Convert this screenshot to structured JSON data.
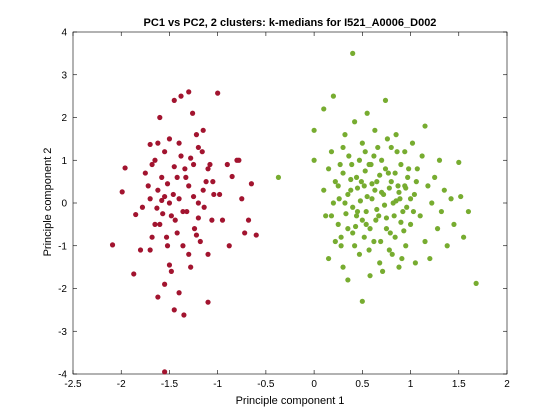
{
  "chart_data": {
    "type": "scatter",
    "title": "PC1 vs PC2, 2 clusters: k-medians for I521_A0006_D002",
    "xlabel": "Principle component 1",
    "ylabel": "Principle component 2",
    "xlim": [
      -2.5,
      2
    ],
    "ylim": [
      -4,
      4
    ],
    "xticks": [
      -2.5,
      -2,
      -1.5,
      -1,
      -0.5,
      0,
      0.5,
      1,
      1.5,
      2
    ],
    "yticks": [
      -4,
      -3,
      -2,
      -1,
      0,
      1,
      2,
      3,
      4
    ],
    "xtick_labels": [
      "-2.5",
      "-2",
      "-1.5",
      "-1",
      "-0.5",
      "0",
      "0.5",
      "1",
      "1.5",
      "2"
    ],
    "ytick_labels": [
      "-4",
      "-3",
      "-2",
      "-1",
      "0",
      "1",
      "2",
      "3",
      "4"
    ],
    "grid": false,
    "series": [
      {
        "color": "#A2142F",
        "points": [
          [
            -2.09,
            -0.98
          ],
          [
            -1.99,
            0.26
          ],
          [
            -1.96,
            0.82
          ],
          [
            -1.87,
            -1.66
          ],
          [
            -1.85,
            -0.27
          ],
          [
            -1.8,
            -1.1
          ],
          [
            -1.78,
            -0.1
          ],
          [
            -1.72,
            0.4
          ],
          [
            -1.7,
            1.37
          ],
          [
            -1.7,
            0.1
          ],
          [
            -1.68,
            0.9
          ],
          [
            -1.65,
            1.0
          ],
          [
            -1.63,
            -0.12
          ],
          [
            -1.62,
            0.3
          ],
          [
            -1.6,
            -0.5
          ],
          [
            -1.58,
            0.06
          ],
          [
            -1.55,
            -1.9
          ],
          [
            -1.53,
            -0.8
          ],
          [
            -1.5,
            1.5
          ],
          [
            -1.5,
            0.0
          ],
          [
            -1.48,
            -1.6
          ],
          [
            -1.46,
            0.2
          ],
          [
            -1.44,
            -0.4
          ],
          [
            -1.42,
            0.6
          ],
          [
            -1.4,
            -2.1
          ],
          [
            -1.38,
            1.1
          ],
          [
            -1.36,
            -1.0
          ],
          [
            -1.34,
            0.8
          ],
          [
            -1.32,
            -0.2
          ],
          [
            -1.3,
            0.4
          ],
          [
            -1.28,
            -1.5
          ],
          [
            -1.26,
            2.1
          ],
          [
            -1.24,
            -0.6
          ],
          [
            -1.22,
            1.6
          ],
          [
            -1.2,
            0.0
          ],
          [
            -1.18,
            -0.9
          ],
          [
            -1.16,
            1.2
          ],
          [
            -1.14,
            -0.1
          ],
          [
            -1.12,
            0.5
          ],
          [
            -1.1,
            -1.2
          ],
          [
            -1.08,
            0.9
          ],
          [
            -1.06,
            -0.4
          ],
          [
            -1.04,
            0.2
          ],
          [
            -1.3,
            2.6
          ],
          [
            -1.45,
            2.4
          ],
          [
            -1.6,
            2.0
          ],
          [
            -1.38,
            2.5
          ],
          [
            -1.2,
            1.3
          ],
          [
            -1.15,
            1.7
          ],
          [
            -1.4,
            1.4
          ],
          [
            -1.55,
            1.2
          ],
          [
            -1.25,
            0.9
          ],
          [
            -1.1,
            0.8
          ],
          [
            -1.05,
            0.5
          ],
          [
            -0.98,
            0.2
          ],
          [
            -1.0,
            2.57
          ],
          [
            -0.95,
            -0.4
          ],
          [
            -0.88,
            -1.0
          ],
          [
            -0.85,
            0.62
          ],
          [
            -0.8,
            1.0
          ],
          [
            -0.75,
            0.1
          ],
          [
            -0.72,
            -0.7
          ],
          [
            -0.68,
            -0.4
          ],
          [
            -0.65,
            0.45
          ],
          [
            -0.6,
            -0.75
          ],
          [
            -0.78,
            1.0
          ],
          [
            -0.9,
            0.9
          ],
          [
            -1.5,
            -1.45
          ],
          [
            -1.52,
            -1.0
          ],
          [
            -1.35,
            -2.62
          ],
          [
            -1.1,
            -2.32
          ],
          [
            -1.55,
            -3.95
          ],
          [
            -1.62,
            -2.2
          ],
          [
            -1.45,
            -2.5
          ],
          [
            -1.7,
            -1.1
          ],
          [
            -1.75,
            0.7
          ],
          [
            -1.65,
            -0.5
          ],
          [
            -1.58,
            0.6
          ],
          [
            -1.55,
            0.15
          ],
          [
            -1.48,
            -0.3
          ],
          [
            -1.42,
            -0.7
          ],
          [
            -1.36,
            -0.2
          ],
          [
            -1.3,
            -1.2
          ],
          [
            -1.25,
            0.15
          ],
          [
            -1.2,
            -0.35
          ],
          [
            -1.15,
            0.3
          ],
          [
            -1.45,
            0.85
          ],
          [
            -1.62,
            1.4
          ],
          [
            -1.28,
            1.05
          ],
          [
            -1.33,
            0.6
          ],
          [
            -1.68,
            -0.8
          ],
          [
            -1.57,
            -0.25
          ],
          [
            -1.4,
            0.1
          ],
          [
            -1.52,
            0.45
          ],
          [
            -1.22,
            -0.75
          ]
        ]
      },
      {
        "color": "#77AC30",
        "points": [
          [
            -0.37,
            0.6
          ],
          [
            0.0,
            1.7
          ],
          [
            0.0,
            1.0
          ],
          [
            0.1,
            2.2
          ],
          [
            0.1,
            0.3
          ],
          [
            0.12,
            -0.3
          ],
          [
            0.15,
            -1.3
          ],
          [
            0.18,
            1.2
          ],
          [
            0.2,
            2.5
          ],
          [
            0.22,
            0.5
          ],
          [
            0.25,
            -0.5
          ],
          [
            0.27,
            0.9
          ],
          [
            0.28,
            -1.0
          ],
          [
            0.3,
            -1.5
          ],
          [
            0.32,
            1.6
          ],
          [
            0.32,
            0.0
          ],
          [
            0.35,
            -1.8
          ],
          [
            0.36,
            1.1
          ],
          [
            0.38,
            0.3
          ],
          [
            0.4,
            -0.7
          ],
          [
            0.4,
            3.5
          ],
          [
            0.42,
            1.9
          ],
          [
            0.44,
            0.6
          ],
          [
            0.45,
            -0.2
          ],
          [
            0.47,
            -1.2
          ],
          [
            0.5,
            1.4
          ],
          [
            0.5,
            -2.3
          ],
          [
            0.52,
            0.4
          ],
          [
            0.54,
            -0.5
          ],
          [
            0.55,
            2.1
          ],
          [
            0.57,
            0.9
          ],
          [
            0.58,
            -1.7
          ],
          [
            0.6,
            0.1
          ],
          [
            0.62,
            -0.9
          ],
          [
            0.63,
            1.7
          ],
          [
            0.65,
            0.5
          ],
          [
            0.67,
            -0.3
          ],
          [
            0.68,
            -1.4
          ],
          [
            0.7,
            1.0
          ],
          [
            0.72,
            0.2
          ],
          [
            0.74,
            2.4
          ],
          [
            0.75,
            -0.6
          ],
          [
            0.77,
            0.7
          ],
          [
            0.78,
            -1.1
          ],
          [
            0.8,
            1.3
          ],
          [
            0.82,
            0.0
          ],
          [
            0.84,
            -0.8
          ],
          [
            0.85,
            1.6
          ],
          [
            0.87,
            0.4
          ],
          [
            0.88,
            -1.5
          ],
          [
            0.9,
            0.9
          ],
          [
            0.92,
            -0.2
          ],
          [
            0.94,
            1.2
          ],
          [
            0.95,
            -1.0
          ],
          [
            0.97,
            0.6
          ],
          [
            1.0,
            -0.5
          ],
          [
            1.02,
            1.4
          ],
          [
            1.04,
            0.2
          ],
          [
            1.05,
            -1.4
          ],
          [
            1.07,
            0.8
          ],
          [
            1.1,
            -0.3
          ],
          [
            1.12,
            1.1
          ],
          [
            1.15,
            1.8
          ],
          [
            1.15,
            -0.9
          ],
          [
            1.18,
            0.4
          ],
          [
            1.2,
            -1.3
          ],
          [
            1.22,
            0.0
          ],
          [
            1.25,
            0.6
          ],
          [
            1.28,
            -0.6
          ],
          [
            1.3,
            1.0
          ],
          [
            1.32,
            -0.2
          ],
          [
            1.35,
            0.3
          ],
          [
            1.38,
            -1.0
          ],
          [
            1.42,
            0.1
          ],
          [
            1.45,
            -0.5
          ],
          [
            1.5,
            0.95
          ],
          [
            1.52,
            0.15
          ],
          [
            1.55,
            -0.8
          ],
          [
            1.6,
            -0.2
          ],
          [
            1.68,
            -1.88
          ],
          [
            0.3,
            0.7
          ],
          [
            0.35,
            0.2
          ],
          [
            0.4,
            -0.1
          ],
          [
            0.45,
            0.35
          ],
          [
            0.5,
            -0.4
          ],
          [
            0.55,
            0.15
          ],
          [
            0.6,
            0.45
          ],
          [
            0.65,
            -0.15
          ],
          [
            0.7,
            0.25
          ],
          [
            0.75,
            -0.35
          ],
          [
            0.8,
            0.5
          ],
          [
            0.85,
            0.05
          ],
          [
            0.9,
            -0.45
          ],
          [
            0.95,
            0.35
          ],
          [
            1.0,
            0.1
          ],
          [
            0.33,
            -0.25
          ],
          [
            0.38,
            0.55
          ],
          [
            0.43,
            -0.55
          ],
          [
            0.48,
            0.05
          ],
          [
            0.53,
            0.75
          ],
          [
            0.58,
            -0.6
          ],
          [
            0.63,
            0.3
          ],
          [
            0.68,
            0.65
          ],
          [
            0.73,
            -0.05
          ],
          [
            0.78,
            0.35
          ],
          [
            0.83,
            -0.3
          ],
          [
            0.88,
            0.25
          ],
          [
            0.93,
            -0.65
          ],
          [
            0.98,
            0.8
          ],
          [
            1.03,
            -0.2
          ],
          [
            0.2,
            0.0
          ],
          [
            0.25,
            0.4
          ],
          [
            0.28,
            -0.8
          ],
          [
            0.42,
            -1.0
          ],
          [
            0.52,
            -0.8
          ],
          [
            0.57,
            -1.1
          ],
          [
            0.62,
            1.1
          ],
          [
            0.66,
            1.3
          ],
          [
            0.71,
            -1.6
          ],
          [
            0.76,
            1.5
          ],
          [
            0.81,
            -1.2
          ],
          [
            0.86,
            1.2
          ],
          [
            0.91,
            -1.3
          ],
          [
            0.96,
            -0.1
          ],
          [
            1.06,
            0.5
          ],
          [
            0.47,
            1.0
          ],
          [
            0.53,
            1.2
          ],
          [
            0.59,
            0.9
          ],
          [
            0.64,
            -0.4
          ],
          [
            0.69,
            -0.9
          ],
          [
            0.74,
            0.8
          ],
          [
            0.79,
            -0.7
          ],
          [
            0.84,
            0.7
          ],
          [
            0.89,
            0.1
          ],
          [
            0.94,
            0.4
          ],
          [
            0.15,
            0.8
          ],
          [
            0.18,
            -0.3
          ],
          [
            0.22,
            -0.9
          ],
          [
            0.26,
            0.1
          ],
          [
            0.3,
            1.3
          ],
          [
            0.35,
            -0.6
          ],
          [
            0.39,
            0.9
          ],
          [
            0.44,
            -0.3
          ],
          [
            0.49,
            0.5
          ],
          [
            0.54,
            -0.2
          ]
        ]
      }
    ]
  }
}
